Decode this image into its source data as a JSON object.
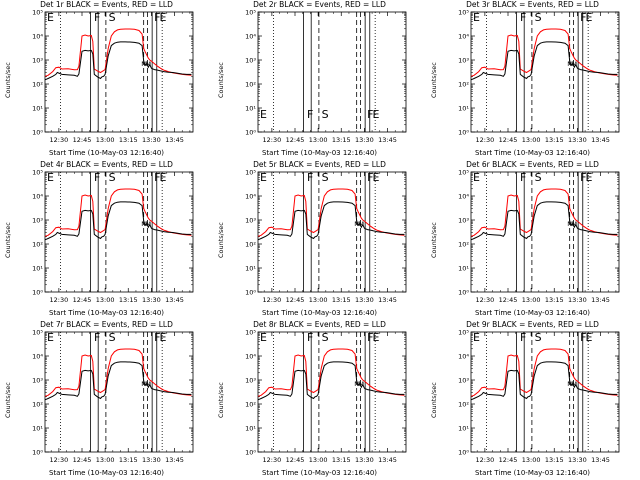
{
  "figure": {
    "colors": {
      "events": "#000000",
      "lld": "#ff0000",
      "axes": "#000000"
    },
    "time_axis": {
      "tick_labels": [
        "12:30",
        "12:45",
        "13:00",
        "13:15",
        "13:30",
        "13:45"
      ],
      "tick_minutes": [
        750,
        765,
        780,
        795,
        810,
        825
      ],
      "xlim_minutes": [
        741,
        837
      ]
    },
    "y_axis": {
      "scale": "log",
      "ylim": [
        1,
        100000
      ],
      "tick_labels": [
        "10⁰",
        "10¹",
        "10²",
        "10³",
        "10⁴",
        "10⁵"
      ]
    },
    "markers": {
      "dotted_minutes": [
        751,
        817
      ],
      "solid_minutes": [
        770.5,
        775.5,
        810.5,
        813.5
      ],
      "dashed_minutes": [
        780.5,
        805,
        807.5
      ],
      "letters": [
        {
          "text": "E",
          "minute": 741
        },
        {
          "text": "F",
          "minute": 771.5
        },
        {
          "text": "S",
          "minute": 781
        },
        {
          "text": "F",
          "minute": 810.5
        },
        {
          "text": "E",
          "minute": 814
        }
      ],
      "small_letters": [
        {
          "text": "N",
          "minute": 805
        },
        {
          "text": "M",
          "minute": 808
        }
      ]
    },
    "series": [
      {
        "name": "Events",
        "color": "#000000",
        "x_minutes": [
          741,
          743,
          746,
          748,
          749,
          752,
          756,
          760,
          762,
          763,
          765,
          767,
          769,
          771,
          772,
          773,
          775,
          777,
          778,
          779,
          780,
          782,
          784,
          786,
          788,
          790,
          793,
          796,
          799,
          802,
          804,
          805,
          806,
          807,
          808,
          809,
          810,
          812,
          814,
          816,
          818,
          821,
          824,
          827,
          830,
          833,
          836
        ],
        "y": [
          150,
          170,
          210,
          250,
          300,
          250,
          240,
          230,
          210,
          260,
          2300,
          2500,
          2400,
          2500,
          1800,
          250,
          200,
          170,
          200,
          210,
          250,
          1500,
          4000,
          5000,
          5500,
          5700,
          5700,
          5600,
          5400,
          5000,
          4000,
          900,
          600,
          700,
          500,
          650,
          450,
          400,
          380,
          350,
          330,
          310,
          300,
          280,
          260,
          250,
          250
        ]
      },
      {
        "name": "LLD",
        "color": "#ff0000",
        "x_minutes": [
          741,
          743,
          746,
          748,
          750,
          752,
          756,
          760,
          762,
          763,
          765,
          767,
          769,
          771,
          772,
          773,
          775,
          777,
          778,
          779,
          780,
          782,
          784,
          786,
          788,
          790,
          793,
          796,
          799,
          802,
          804,
          805,
          806,
          807,
          808,
          809,
          810,
          812,
          814,
          816,
          818,
          821,
          824,
          827,
          830,
          833,
          836
        ],
        "y": [
          210,
          230,
          330,
          480,
          500,
          420,
          430,
          390,
          400,
          550,
          10000,
          11000,
          10000,
          10500,
          6000,
          420,
          350,
          300,
          330,
          360,
          400,
          3000,
          10000,
          15000,
          18000,
          19000,
          19500,
          19500,
          19000,
          17000,
          12000,
          3000,
          2200,
          1600,
          1200,
          1000,
          900,
          700,
          550,
          450,
          380,
          330,
          290,
          270,
          250,
          240,
          230
        ]
      }
    ]
  },
  "panels": [
    {
      "title": "Det 1r BLACK = Events, RED = LLD",
      "xlabel": "Start Time (10-May-03 12:16:40)",
      "ylabel": "Counts/sec",
      "has_data": true
    },
    {
      "title": "Det 2r BLACK = Events, RED = LLD",
      "xlabel": "Start Time (10-May-03 12:16:40)",
      "ylabel": "Counts/sec",
      "has_data": false
    },
    {
      "title": "Det 3r BLACK = Events, RED = LLD",
      "xlabel": "Start Time (10-May-03 12:16:40)",
      "ylabel": "Counts/sec",
      "has_data": true
    },
    {
      "title": "Det 4r BLACK = Events, RED = LLD",
      "xlabel": "Start Time (10-May-03 12:16:40)",
      "ylabel": "Counts/sec",
      "has_data": true
    },
    {
      "title": "Det 5r BLACK = Events, RED = LLD",
      "xlabel": "Start Time (10-May-03 12:16:40)",
      "ylabel": "Counts/sec",
      "has_data": true
    },
    {
      "title": "Det 6r BLACK = Events, RED = LLD",
      "xlabel": "Start Time (10-May-03 12:16:40)",
      "ylabel": "Counts/sec",
      "has_data": true
    },
    {
      "title": "Det 7r BLACK = Events, RED = LLD",
      "xlabel": "Start Time (10-May-03 12:16:40)",
      "ylabel": "Counts/sec",
      "has_data": true
    },
    {
      "title": "Det 8r BLACK = Events, RED = LLD",
      "xlabel": "Start Time (10-May-03 12:16:40)",
      "ylabel": "Counts/sec",
      "has_data": true
    },
    {
      "title": "Det 9r BLACK = Events, RED = LLD",
      "xlabel": "Start Time (10-May-03 12:16:40)",
      "ylabel": "Counts/sec",
      "has_data": true
    }
  ],
  "chart_data": {
    "type": "line",
    "count": 9,
    "x_unit": "time (HH:MM, 10-May-03)",
    "y_scale": "log",
    "ylim": [
      1,
      100000
    ],
    "xlim": [
      "12:21",
      "13:57"
    ],
    "series_names": [
      "Events",
      "LLD"
    ],
    "panel_titles": [
      "Det 1r BLACK = Events, RED = LLD",
      "Det 2r BLACK = Events, RED = LLD",
      "Det 3r BLACK = Events, RED = LLD",
      "Det 4r BLACK = Events, RED = LLD",
      "Det 5r BLACK = Events, RED = LLD",
      "Det 6r BLACK = Events, RED = LLD",
      "Det 7r BLACK = Events, RED = LLD",
      "Det 8r BLACK = Events, RED = LLD",
      "Det 9r BLACK = Events, RED = LLD"
    ],
    "empty_panels": [
      "Det 2r"
    ],
    "grid": false,
    "legend": "in title"
  }
}
